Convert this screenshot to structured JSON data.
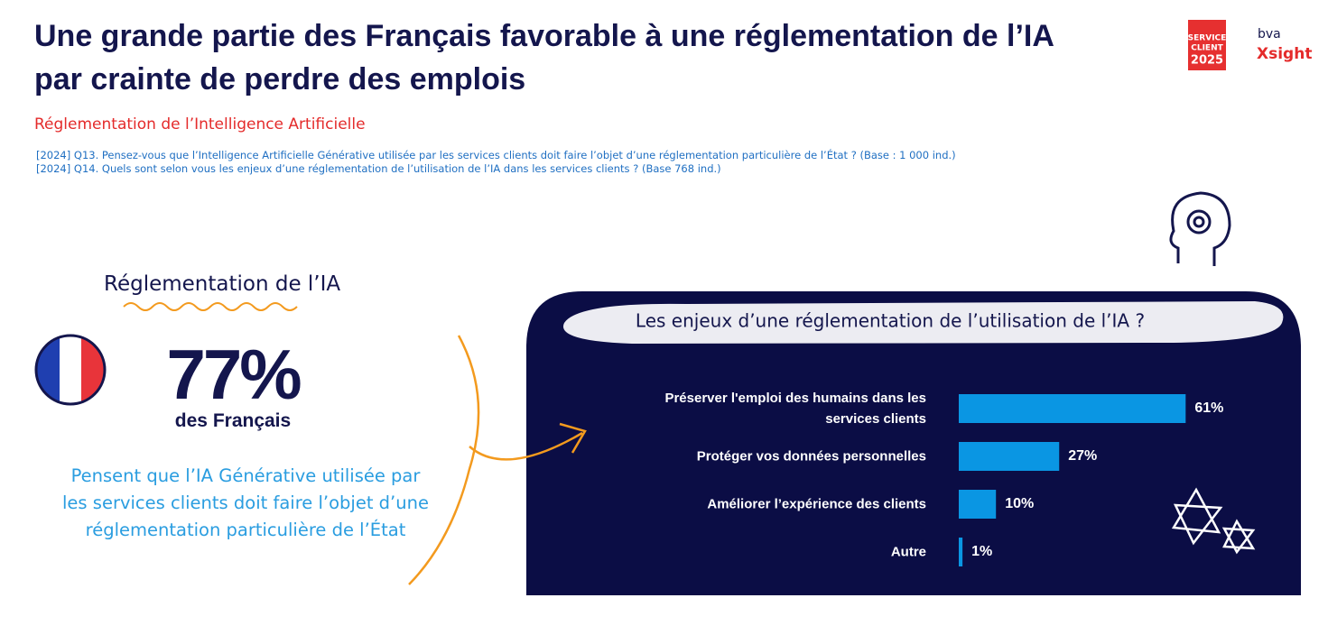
{
  "header": {
    "title": "Une grande partie des Français favorable à une réglementation de l’IA par crainte de perdre des emplois",
    "subtitle": "Réglementation de l’Intelligence Artificielle",
    "questions": [
      "[2024] Q13. Pensez-vous que l’Intelligence Artificielle Générative utilisée par les services clients doit faire l’objet d’une réglementation particulière de l’État ? (Base : 1 000 ind.)",
      "[2024] Q14. Quels sont selon vous les enjeux d’une réglementation de l’utilisation de l’IA dans les services clients ?  (Base 768 ind.)"
    ]
  },
  "logos": {
    "badge": [
      "SERVICE",
      "CLIENT",
      "2025"
    ],
    "bva": "bva",
    "xsight": "Xsight"
  },
  "highlight": {
    "heading": "Réglementation de l’IA",
    "value": "77%",
    "subject": "des Français",
    "description": "Pensent que l’IA Générative utilisée par les services clients doit faire l’objet d’une réglementation particulière de l’État"
  },
  "chart_data": {
    "type": "bar",
    "orientation": "horizontal",
    "title": "Les enjeux d’une réglementation de l’utilisation de l’IA ?",
    "categories": [
      "Préserver l'emploi des humains dans les services clients",
      "Protéger vos données personnelles",
      "Améliorer l’expérience des clients",
      "Autre"
    ],
    "values": [
      61,
      27,
      10,
      1
    ],
    "value_labels": [
      "61%",
      "27%",
      "10%",
      "1%"
    ],
    "color": "#0a96e3"
  }
}
